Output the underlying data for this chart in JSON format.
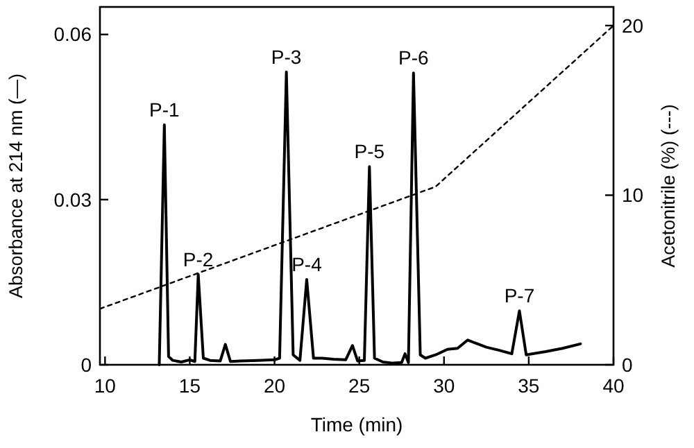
{
  "chart_data": {
    "type": "line",
    "xlabel": "Time (min)",
    "ylabel": "Absorbance at 214 nm (—)",
    "y2label": "Acetonitrile (%) (---)",
    "xlim": [
      9.7,
      40
    ],
    "xticks": [
      10,
      15,
      20,
      25,
      30,
      35,
      40
    ],
    "ylim": [
      0,
      0.065
    ],
    "yticks": [
      0,
      0.03,
      0.06
    ],
    "y2lim": [
      0,
      21.1
    ],
    "y2ticks": [
      0,
      10,
      20
    ],
    "grid": false,
    "marker": "none",
    "series": [
      {
        "color": "#000000",
        "line_style": "solid",
        "axis": "y",
        "x": [
          13.2,
          13.5,
          13.75,
          14.0,
          14.5,
          15.0,
          15.3,
          15.5,
          15.8,
          16.2,
          16.8,
          17.1,
          17.4,
          18.0,
          19.0,
          20.0,
          20.3,
          20.7,
          21.1,
          21.5,
          21.9,
          22.3,
          22.8,
          23.5,
          24.2,
          24.6,
          24.9,
          25.3,
          25.6,
          25.9,
          26.4,
          27.0,
          27.5,
          27.7,
          27.9,
          28.2,
          28.6,
          28.9,
          29.5,
          30.2,
          30.8,
          31.4,
          31.8,
          32.5,
          33.3,
          34.0,
          34.45,
          34.85,
          36.0,
          37.0,
          38.05
        ],
        "values": [
          0,
          0.0436,
          0.0015,
          0.0008,
          0.0005,
          0.0009,
          0.0006,
          0.0164,
          0.0012,
          0.0008,
          0.0007,
          0.0037,
          0.0006,
          0.0007,
          0.0008,
          0.0009,
          0.0012,
          0.0532,
          0.0018,
          0.0008,
          0.0155,
          0.0012,
          0.0012,
          0.001,
          0.0009,
          0.0035,
          0.0007,
          0.0008,
          0.036,
          0.0012,
          0.0005,
          0.0003,
          0.0004,
          0.002,
          0.0004,
          0.053,
          0.0018,
          0.0012,
          0.0018,
          0.0028,
          0.003,
          0.0045,
          0.004,
          0.0032,
          0.0026,
          0.002,
          0.0098,
          0.0018,
          0.0024,
          0.003,
          0.0038
        ]
      },
      {
        "color": "#000000",
        "line_style": "dashed",
        "axis": "y2",
        "x": [
          9.7,
          29.5,
          40
        ],
        "values": [
          3.3,
          10.5,
          20
        ]
      }
    ],
    "annotations": [
      {
        "text": "P-1",
        "x": 13.5,
        "y": 0.0436
      },
      {
        "text": "P-2",
        "x": 15.5,
        "y": 0.0164
      },
      {
        "text": "P-3",
        "x": 20.7,
        "y": 0.0532
      },
      {
        "text": "P-4",
        "x": 21.9,
        "y": 0.0155
      },
      {
        "text": "P-5",
        "x": 25.6,
        "y": 0.036
      },
      {
        "text": "P-6",
        "x": 28.2,
        "y": 0.053
      },
      {
        "text": "P-7",
        "x": 34.45,
        "y": 0.0098
      }
    ]
  }
}
